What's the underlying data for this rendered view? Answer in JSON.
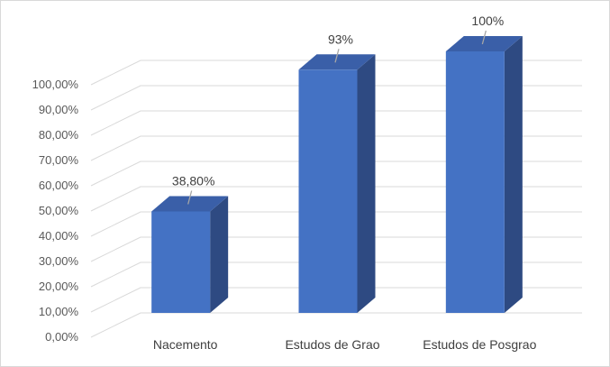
{
  "chart_data": {
    "type": "bar",
    "style": "3d-column",
    "categories": [
      "Nacemento",
      "Estudos de Grao",
      "Estudos de Posgrao"
    ],
    "values": [
      38.8,
      93,
      100
    ],
    "data_labels": [
      "38,80%",
      "93%",
      "100%"
    ],
    "yticks": [
      "0,00%",
      "10,00%",
      "20,00%",
      "30,00%",
      "40,00%",
      "50,00%",
      "60,00%",
      "70,00%",
      "80,00%",
      "90,00%",
      "100,00%"
    ],
    "ylim": [
      0,
      100
    ],
    "grid": true,
    "legend": "none",
    "colors": {
      "bar_front": "#4472c4",
      "bar_side": "#2e4a82",
      "bar_top": "#3a5fa8",
      "grid": "#d9d9d9",
      "leader": "#a6a6a6"
    }
  }
}
